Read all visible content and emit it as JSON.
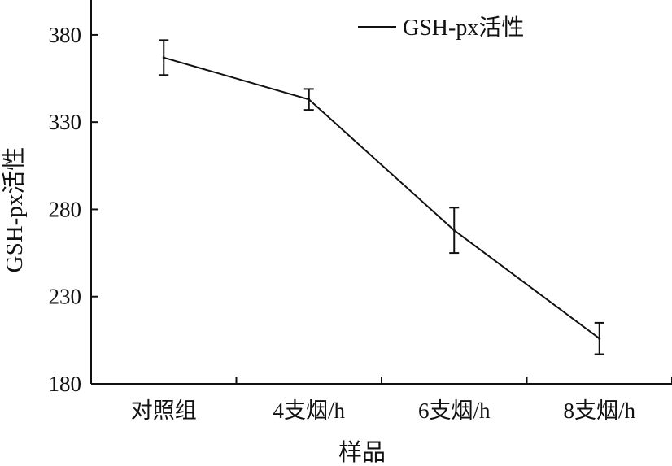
{
  "chart_data": {
    "type": "line",
    "xlabel": "样品",
    "ylabel": "GSH-px活性",
    "categories": [
      "对照组",
      "4支烟/h",
      "6支烟/h",
      "8支烟/h"
    ],
    "ylim": [
      180,
      400
    ],
    "yticks": [
      180,
      230,
      280,
      330,
      380
    ],
    "grid": false,
    "legend_position": "top-right",
    "series": [
      {
        "name": "GSH-px活性",
        "values": [
          367,
          343,
          268,
          206
        ],
        "error": [
          10,
          6,
          13,
          9
        ]
      }
    ]
  }
}
